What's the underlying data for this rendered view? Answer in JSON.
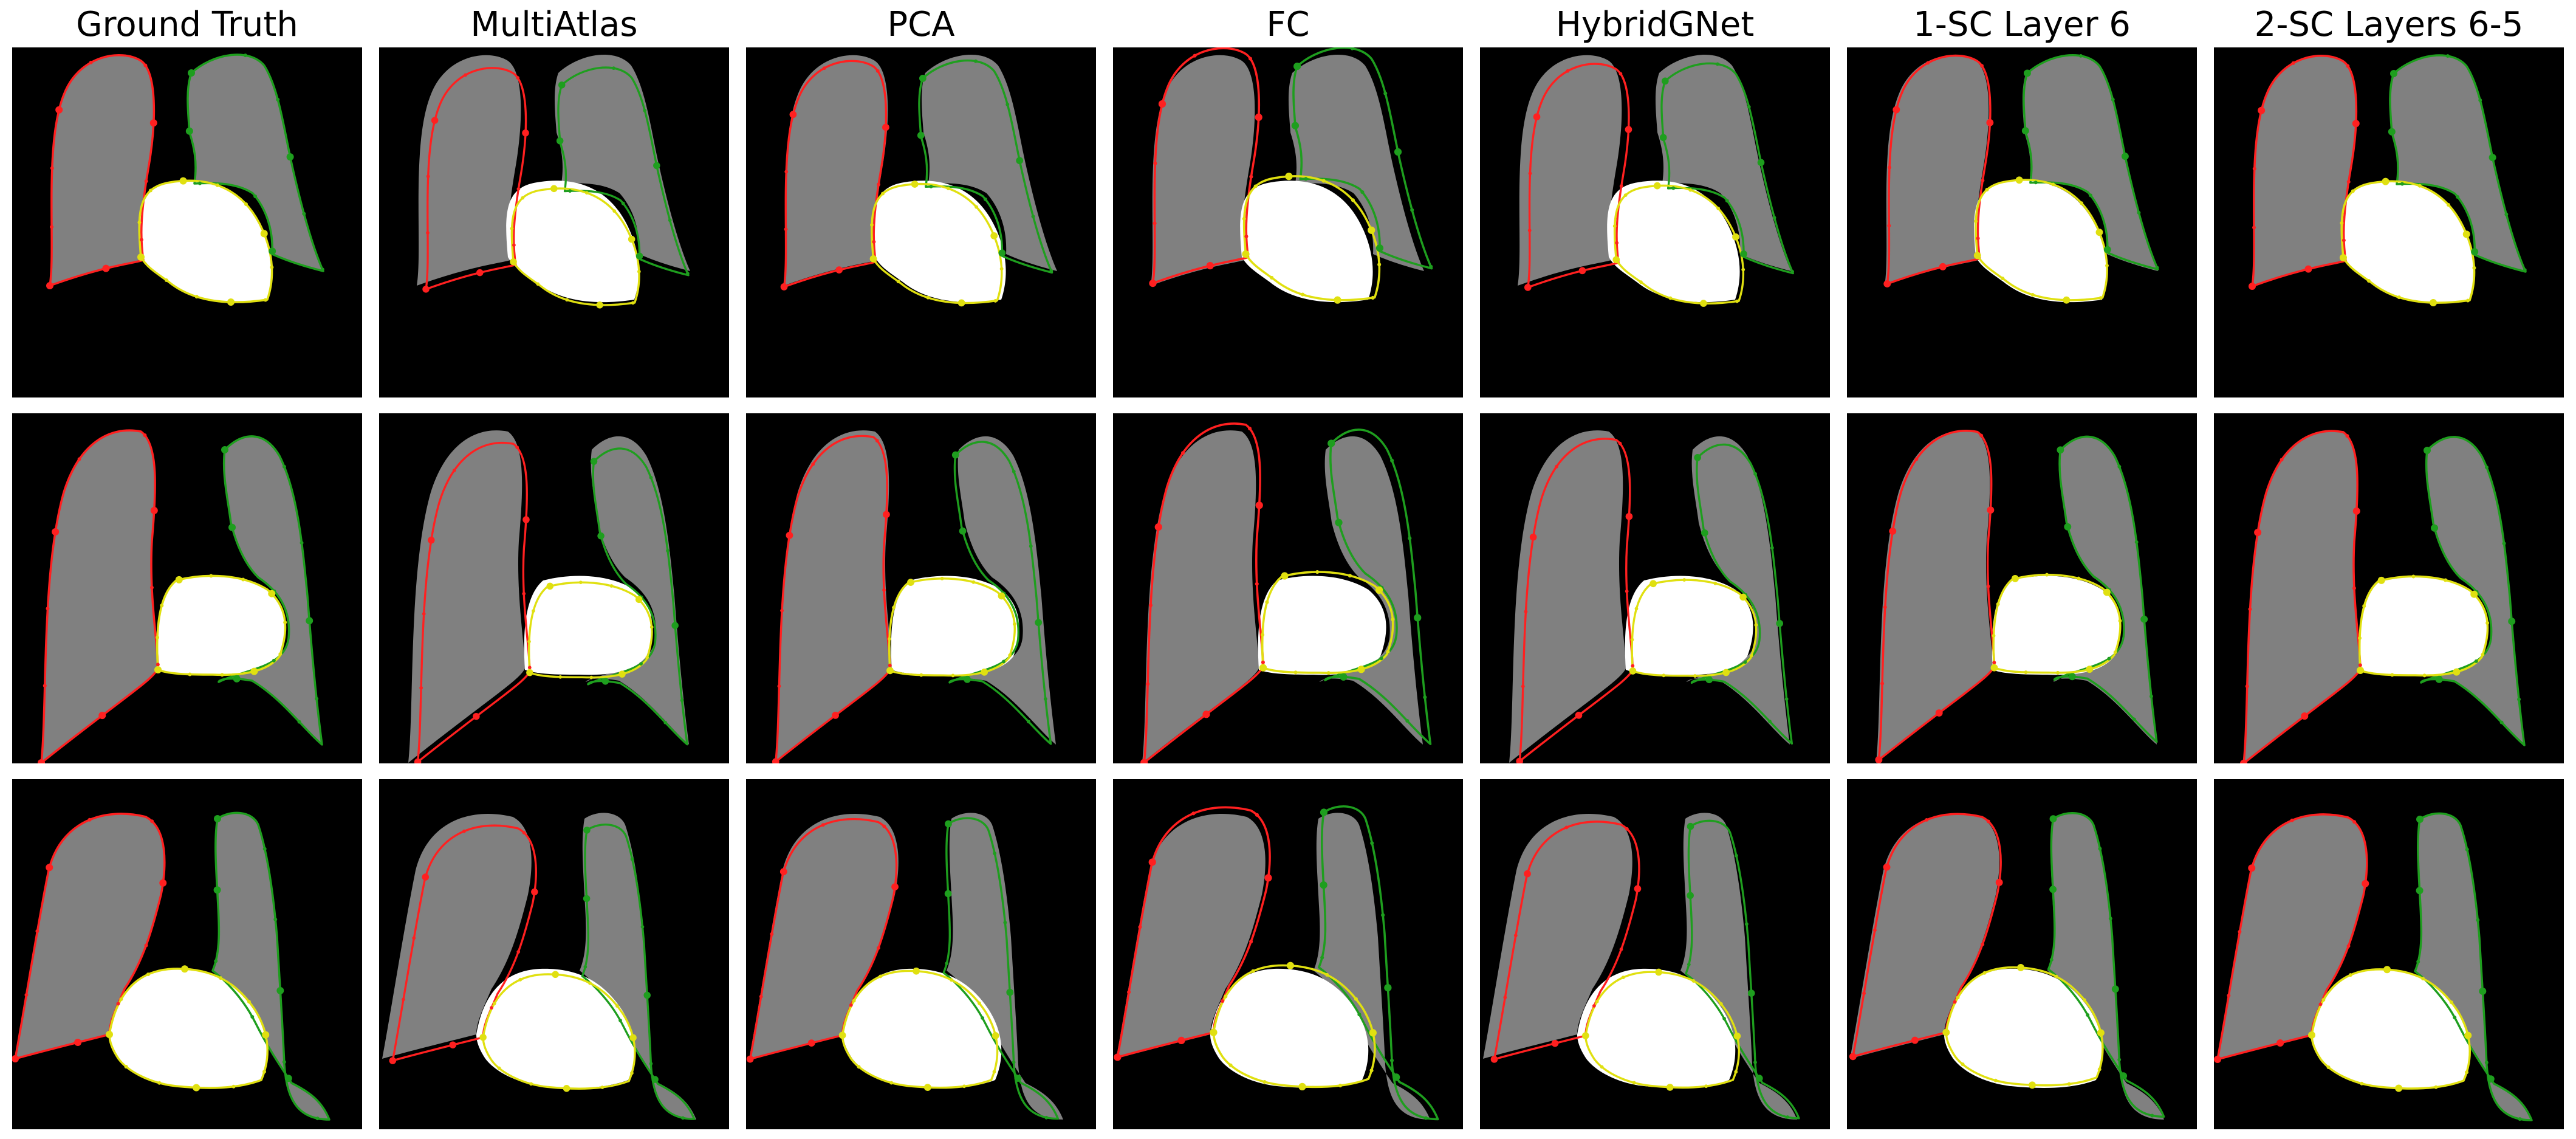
{
  "columns": [
    "Ground Truth",
    "MultiAtlas",
    "PCA",
    "FC",
    "HybridGNet",
    "1-SC Layer 6",
    "2-SC Layers 6-5"
  ],
  "rows": 3,
  "colors": {
    "background": "#000000",
    "lung_fill": "#808080",
    "heart_fill": "#ffffff",
    "right_lung_contour": "#ff2020",
    "left_lung_contour": "#1e9e1e",
    "heart_contour": "#e0e010"
  }
}
